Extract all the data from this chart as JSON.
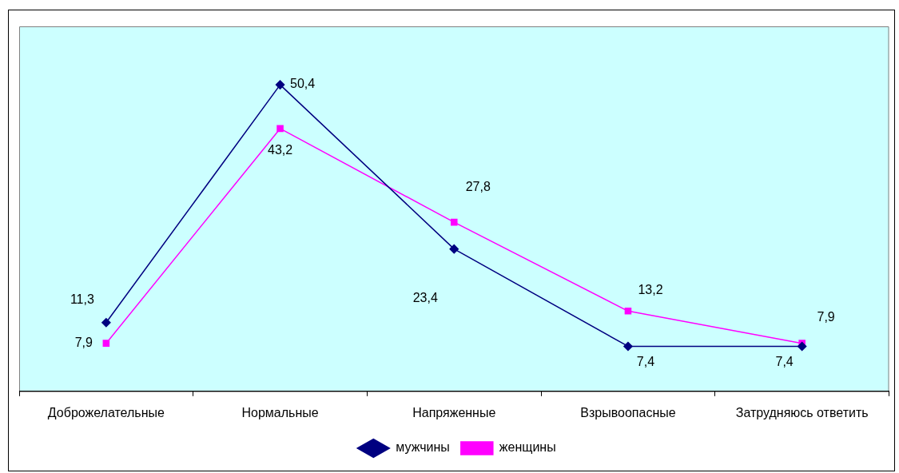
{
  "chart_data": {
    "type": "line",
    "categories": [
      "Доброжелательные",
      "Нормальные",
      "Напряженные",
      "Взрывоопасные",
      "Затрудняюсь ответить"
    ],
    "series": [
      {
        "name": "мужчины",
        "color": "#000080",
        "marker": "diamond",
        "values": [
          11.3,
          50.4,
          23.4,
          7.4,
          7.4
        ],
        "value_labels": [
          "11,3",
          "50,4",
          "23,4",
          "7,4",
          "7,4"
        ]
      },
      {
        "name": "женщины",
        "color": "#ff00ff",
        "marker": "square",
        "values": [
          7.9,
          43.2,
          27.8,
          13.2,
          7.9
        ],
        "value_labels": [
          "7,9",
          "43,2",
          "27,8",
          "13,2",
          "7,9"
        ]
      }
    ],
    "grid": false,
    "legend": "bottom",
    "tick_labels": "x"
  }
}
